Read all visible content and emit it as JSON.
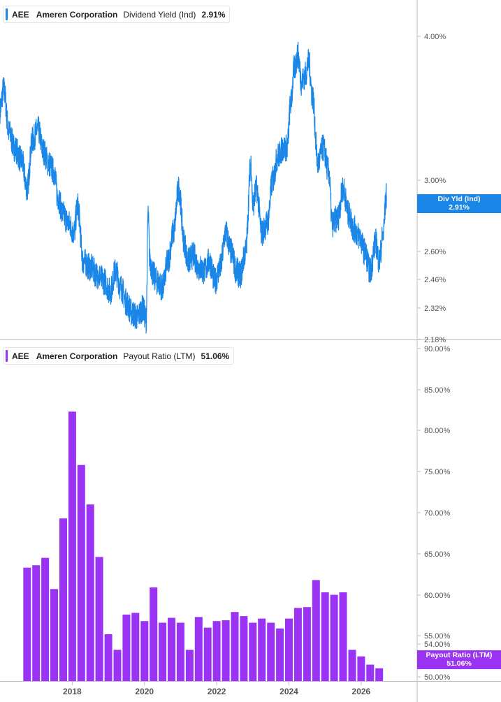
{
  "colors": {
    "yield": "#1a86e8",
    "payout": "#9a33f3",
    "grid": "#d9d9d9",
    "tick_text": "#555555"
  },
  "legend_top": {
    "symbol": "AEE",
    "company": "Ameren Corporation",
    "metric": "Dividend Yield (Ind)",
    "value": "2.91%"
  },
  "legend_bottom": {
    "symbol": "AEE",
    "company": "Ameren Corporation",
    "metric": "Payout Ratio (LTM)",
    "value": "51.06%"
  },
  "tag_top": {
    "label": "Div Yld (Ind)",
    "value": "2.91%"
  },
  "tag_bottom": {
    "label": "Payout Ratio (LTM)",
    "value": "51.06%"
  },
  "chart_data": [
    {
      "type": "line",
      "title": "Dividend Yield (Ind)",
      "scale": "log",
      "ylim": [
        2.18,
        4.3
      ],
      "xlim": [
        2016.0,
        2027.55
      ],
      "y_ticks": [
        "4.00%",
        "3.00%",
        "2.60%",
        "2.46%",
        "2.32%",
        "2.18%"
      ],
      "x_ticks": [
        "2018",
        "2020",
        "2022",
        "2024",
        "2026"
      ],
      "series": [
        {
          "name": "Dividend Yield (Ind)",
          "x": [
            2016.0,
            2016.1,
            2016.25,
            2016.4,
            2016.6,
            2016.75,
            2016.9,
            2017.05,
            2017.2,
            2017.35,
            2017.5,
            2017.6,
            2017.75,
            2017.9,
            2018.05,
            2018.15,
            2018.3,
            2018.5,
            2018.7,
            2018.9,
            2019.05,
            2019.2,
            2019.35,
            2019.5,
            2019.65,
            2019.8,
            2019.95,
            2020.05,
            2020.1,
            2020.15,
            2020.25,
            2020.35,
            2020.5,
            2020.65,
            2020.8,
            2020.95,
            2021.1,
            2021.2,
            2021.35,
            2021.5,
            2021.65,
            2021.8,
            2021.95,
            2022.1,
            2022.25,
            2022.4,
            2022.55,
            2022.65,
            2022.8,
            2022.95,
            2023.0,
            2023.1,
            2023.25,
            2023.4,
            2023.55,
            2023.7,
            2023.85,
            2023.95,
            2024.05,
            2024.15,
            2024.25,
            2024.35,
            2024.45,
            2024.55,
            2024.65,
            2024.8,
            2024.95,
            2025.1,
            2025.2,
            2025.35,
            2025.5,
            2025.65,
            2025.8,
            2025.95,
            2026.1,
            2026.25,
            2026.4,
            2026.5,
            2026.6,
            2026.7
          ],
          "values": [
            3.45,
            3.6,
            3.3,
            3.2,
            3.12,
            2.95,
            3.25,
            3.32,
            3.18,
            3.1,
            3.05,
            2.9,
            2.8,
            2.75,
            2.7,
            2.85,
            2.55,
            2.52,
            2.48,
            2.45,
            2.4,
            2.5,
            2.42,
            2.35,
            2.3,
            2.28,
            2.32,
            2.27,
            2.8,
            2.55,
            2.48,
            2.45,
            2.42,
            2.55,
            2.7,
            2.95,
            2.65,
            2.55,
            2.58,
            2.52,
            2.5,
            2.55,
            2.45,
            2.52,
            2.7,
            2.6,
            2.5,
            2.48,
            2.6,
            3.1,
            2.85,
            2.95,
            2.7,
            2.75,
            3.0,
            3.15,
            3.2,
            3.2,
            3.5,
            3.75,
            3.85,
            3.65,
            3.7,
            3.8,
            3.55,
            3.1,
            3.2,
            3.05,
            2.75,
            2.78,
            2.95,
            2.8,
            2.72,
            2.68,
            2.6,
            2.5,
            2.65,
            2.55,
            2.68,
            2.91
          ]
        }
      ]
    },
    {
      "type": "bar",
      "title": "Payout Ratio (LTM)",
      "ylim": [
        49.5,
        91
      ],
      "y_ticks": [
        "90.00%",
        "85.00%",
        "80.00%",
        "75.00%",
        "70.00%",
        "65.00%",
        "60.00%",
        "55.00%",
        "54.00%",
        "52.00%",
        "50.00%"
      ],
      "x_ticks": [
        "2018",
        "2020",
        "2022",
        "2024",
        "2026"
      ],
      "series": [
        {
          "name": "Payout Ratio (LTM)",
          "x": [
            2016.75,
            2017.0,
            2017.25,
            2017.5,
            2017.75,
            2018.0,
            2018.25,
            2018.5,
            2018.75,
            2019.0,
            2019.25,
            2019.5,
            2019.75,
            2020.0,
            2020.25,
            2020.5,
            2020.75,
            2021.0,
            2021.25,
            2021.5,
            2021.75,
            2022.0,
            2022.25,
            2022.5,
            2022.75,
            2023.0,
            2023.25,
            2023.5,
            2023.75,
            2024.0,
            2024.25,
            2024.5,
            2024.75,
            2025.0,
            2025.25,
            2025.5,
            2025.75,
            2026.0,
            2026.25,
            2026.5
          ],
          "values": [
            63.3,
            63.6,
            64.5,
            60.7,
            69.3,
            82.3,
            75.8,
            71.0,
            64.6,
            55.2,
            53.3,
            57.6,
            57.8,
            56.8,
            60.9,
            56.6,
            57.2,
            56.6,
            53.3,
            57.3,
            56.0,
            56.8,
            56.9,
            57.9,
            57.4,
            56.6,
            57.1,
            56.6,
            55.9,
            57.1,
            58.4,
            58.5,
            61.8,
            60.3,
            60.0,
            60.3,
            53.3,
            52.5,
            51.5,
            51.06
          ]
        }
      ]
    }
  ]
}
